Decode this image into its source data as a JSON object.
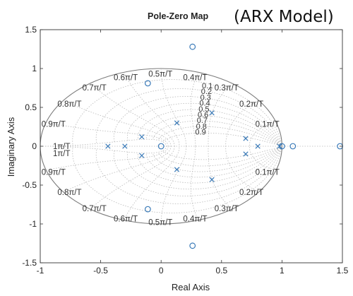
{
  "chart_data": {
    "type": "scatter",
    "title": "Pole-Zero Map",
    "subtitle": "(ARX Model)",
    "xlabel": "Real Axis",
    "ylabel": "Imaginary Axis",
    "xlim": [
      -1,
      1.5
    ],
    "ylim": [
      -1.5,
      1.5
    ],
    "xticks": [
      "-1",
      "-0.5",
      "0",
      "0.5",
      "1",
      "1.5"
    ],
    "yticks": [
      "1.5",
      "1",
      "0.5",
      "0",
      "-0.5",
      "-1",
      "-1.5"
    ],
    "grid": "zgrid",
    "damping_labels": [
      "0.1",
      "0.2",
      "0.3",
      "0.4",
      "0.5",
      "0.6",
      "0.7",
      "0.8",
      "0.9"
    ],
    "frequency_labels_upper": [
      "0.1π/T",
      "0.2π/T",
      "0.3π/T",
      "0.4π/T",
      "0.5π/T",
      "0.6π/T",
      "0.7π/T",
      "0.8π/T",
      "0.9π/T",
      "1π/T"
    ],
    "frequency_labels_lower": [
      "1π/T",
      "0.9π/T",
      "0.8π/T",
      "0.7π/T",
      "0.6π/T",
      "0.5π/T",
      "0.4π/T",
      "0.3π/T",
      "0.2π/T",
      "0.1π/T"
    ],
    "series": [
      {
        "marker": "x",
        "values": [
          [
            -0.44,
            0.0
          ],
          [
            -0.3,
            0.0
          ],
          [
            -0.16,
            0.12
          ],
          [
            -0.16,
            -0.12
          ],
          [
            0.13,
            0.3
          ],
          [
            0.13,
            -0.3
          ],
          [
            0.42,
            0.43
          ],
          [
            0.42,
            -0.43
          ],
          [
            0.7,
            0.1
          ],
          [
            0.7,
            -0.1
          ],
          [
            0.8,
            0.0
          ],
          [
            0.98,
            0.0
          ]
        ]
      },
      {
        "marker": "o",
        "values": [
          [
            0.0,
            0.0
          ],
          [
            0.26,
            1.28
          ],
          [
            0.26,
            -1.28
          ],
          [
            -0.11,
            0.81
          ],
          [
            -0.11,
            -0.81
          ],
          [
            1.0,
            0.0
          ],
          [
            1.09,
            0.0
          ],
          [
            1.48,
            0.0
          ]
        ]
      }
    ],
    "colors": {
      "marker": "#3a7ab8",
      "grid": "#b9b9b9",
      "unit_circle": "#7a7a7a"
    }
  }
}
